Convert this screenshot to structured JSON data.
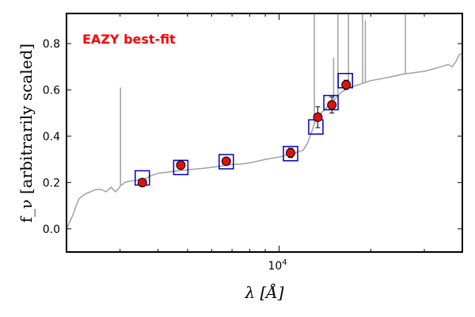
{
  "chart_data": {
    "type": "scatter",
    "title": "",
    "xlabel": "λ [Å]",
    "ylabel": "f_ν [arbitrarily scaled]",
    "xscale": "log",
    "xlim": [
      2000,
      40000
    ],
    "ylim": [
      -0.1,
      0.93
    ],
    "yticks": [
      0.0,
      0.2,
      0.4,
      0.6,
      0.8
    ],
    "ytick_labels": [
      "0.0",
      "0.2",
      "0.4",
      "0.6",
      "0.8"
    ],
    "xticks_major": [
      10000
    ],
    "xtick_major_labels": [
      "10",
      "4"
    ],
    "xticks_minor": [
      3000,
      4000,
      5000,
      6000,
      7000,
      8000,
      9000,
      20000,
      30000
    ],
    "grid": false,
    "annotation": {
      "text": "EAZY best-fit",
      "color": "#ff0000"
    },
    "series": [
      {
        "kind": "line",
        "color": "#a0a0a0",
        "x": [
          2000,
          2050,
          2100,
          2150,
          2200,
          2300,
          2400,
          2500,
          2600,
          2700,
          2800,
          2900,
          2990,
          3020,
          3050,
          3100,
          3200,
          3400,
          3600,
          3700,
          3800,
          3900,
          4000,
          4300,
          4600,
          5000,
          5500,
          6000,
          6500,
          7000,
          7500,
          8000,
          8500,
          9000,
          9500,
          10000,
          10500,
          11000,
          11500,
          12000,
          12400,
          12800,
          13100,
          13400,
          13700,
          14000,
          14500,
          15000,
          15500,
          16000,
          16500,
          17000,
          18000,
          19000,
          20000,
          21000,
          22000,
          23000,
          24000,
          25000,
          26000,
          27000,
          28000,
          29000,
          30000,
          32000,
          34000,
          36000,
          37000,
          38000,
          39000,
          40000
        ],
        "y": [
          0.0,
          0.03,
          0.06,
          0.1,
          0.13,
          0.15,
          0.16,
          0.17,
          0.17,
          0.16,
          0.18,
          0.16,
          0.18,
          0.19,
          0.19,
          0.2,
          0.205,
          0.21,
          0.215,
          0.222,
          0.23,
          0.235,
          0.24,
          0.245,
          0.25,
          0.255,
          0.26,
          0.265,
          0.272,
          0.278,
          0.28,
          0.285,
          0.292,
          0.3,
          0.305,
          0.31,
          0.318,
          0.325,
          0.332,
          0.34,
          0.37,
          0.42,
          0.46,
          0.49,
          0.5,
          0.51,
          0.53,
          0.55,
          0.57,
          0.59,
          0.6,
          0.61,
          0.62,
          0.63,
          0.64,
          0.645,
          0.65,
          0.655,
          0.66,
          0.665,
          0.67,
          0.672,
          0.675,
          0.678,
          0.68,
          0.69,
          0.7,
          0.71,
          0.7,
          0.72,
          0.75,
          0.76
        ],
        "spikes": [
          {
            "x": 3010,
            "y": 0.61
          },
          {
            "x": 13050,
            "y": 0.93
          },
          {
            "x": 15100,
            "y": 0.74
          },
          {
            "x": 15600,
            "y": 0.93
          },
          {
            "x": 16900,
            "y": 0.93
          },
          {
            "x": 18800,
            "y": 0.93
          },
          {
            "x": 19200,
            "y": 0.9
          },
          {
            "x": 26000,
            "y": 0.93
          }
        ]
      },
      {
        "kind": "model-boxes",
        "color": "#0000cc",
        "x": [
          3550,
          4750,
          6700,
          10900,
          13200,
          14800,
          16500
        ],
        "y": [
          0.22,
          0.265,
          0.29,
          0.325,
          0.44,
          0.545,
          0.64
        ]
      },
      {
        "kind": "observed-points",
        "color": "#dd1111",
        "x": [
          3550,
          4750,
          6700,
          10900,
          13400,
          14900,
          16600
        ],
        "y": [
          0.2,
          0.275,
          0.292,
          0.328,
          0.482,
          0.535,
          0.622
        ],
        "yerr": [
          0.006,
          0.008,
          0.01,
          0.02,
          0.045,
          0.035,
          0.02
        ]
      }
    ]
  }
}
